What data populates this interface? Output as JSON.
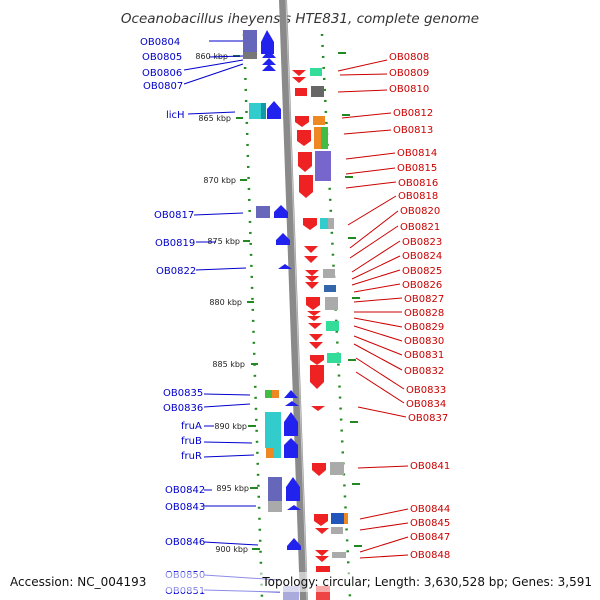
{
  "title": "Oceanobacillus iheyensis HTE831, complete genome",
  "footer": {
    "accession": "Accession: NC_004193",
    "topology": "Topology: circular; Length: 3,630,528 bp; Genes: 3,591"
  },
  "colors": {
    "left_strand": "#0000ee",
    "right_strand": "#ee0000",
    "left_label": "#0000cc",
    "right_label": "#cc0000",
    "axis": "#888888",
    "dots": "#228822"
  },
  "ticks": [
    {
      "kbp": 860,
      "label": "860 kbp"
    },
    {
      "kbp": 865,
      "label": "865 kbp"
    },
    {
      "kbp": 870,
      "label": "870 kbp"
    },
    {
      "kbp": 875,
      "label": "875 kbp"
    },
    {
      "kbp": 880,
      "label": "880 kbp"
    },
    {
      "kbp": 885,
      "label": "885 kbp"
    },
    {
      "kbp": 890,
      "label": "890 kbp"
    },
    {
      "kbp": 895,
      "label": "895 kbp"
    },
    {
      "kbp": 900,
      "label": "900 kbp"
    }
  ],
  "left_labels": [
    "OB0804",
    "OB0805",
    "OB0806",
    "OB0807",
    "licH",
    "OB0817",
    "OB0819",
    "OB0822",
    "OB0835",
    "OB0836",
    "fruA",
    "fruB",
    "fruR",
    "OB0842",
    "OB0843",
    "OB0846",
    "OB0850",
    "OB0851"
  ],
  "right_labels": [
    "OB0808",
    "OB0809",
    "OB0810",
    "OB0812",
    "OB0813",
    "OB0814",
    "OB0815",
    "OB0816",
    "OB0818",
    "OB0820",
    "OB0821",
    "OB0823",
    "OB0824",
    "OB0825",
    "OB0826",
    "OB0827",
    "OB0828",
    "OB0829",
    "OB0830",
    "OB0831",
    "OB0832",
    "OB0833",
    "OB0834",
    "OB0837",
    "OB0841",
    "OB0844",
    "OB0845",
    "OB0847",
    "OB0848"
  ]
}
